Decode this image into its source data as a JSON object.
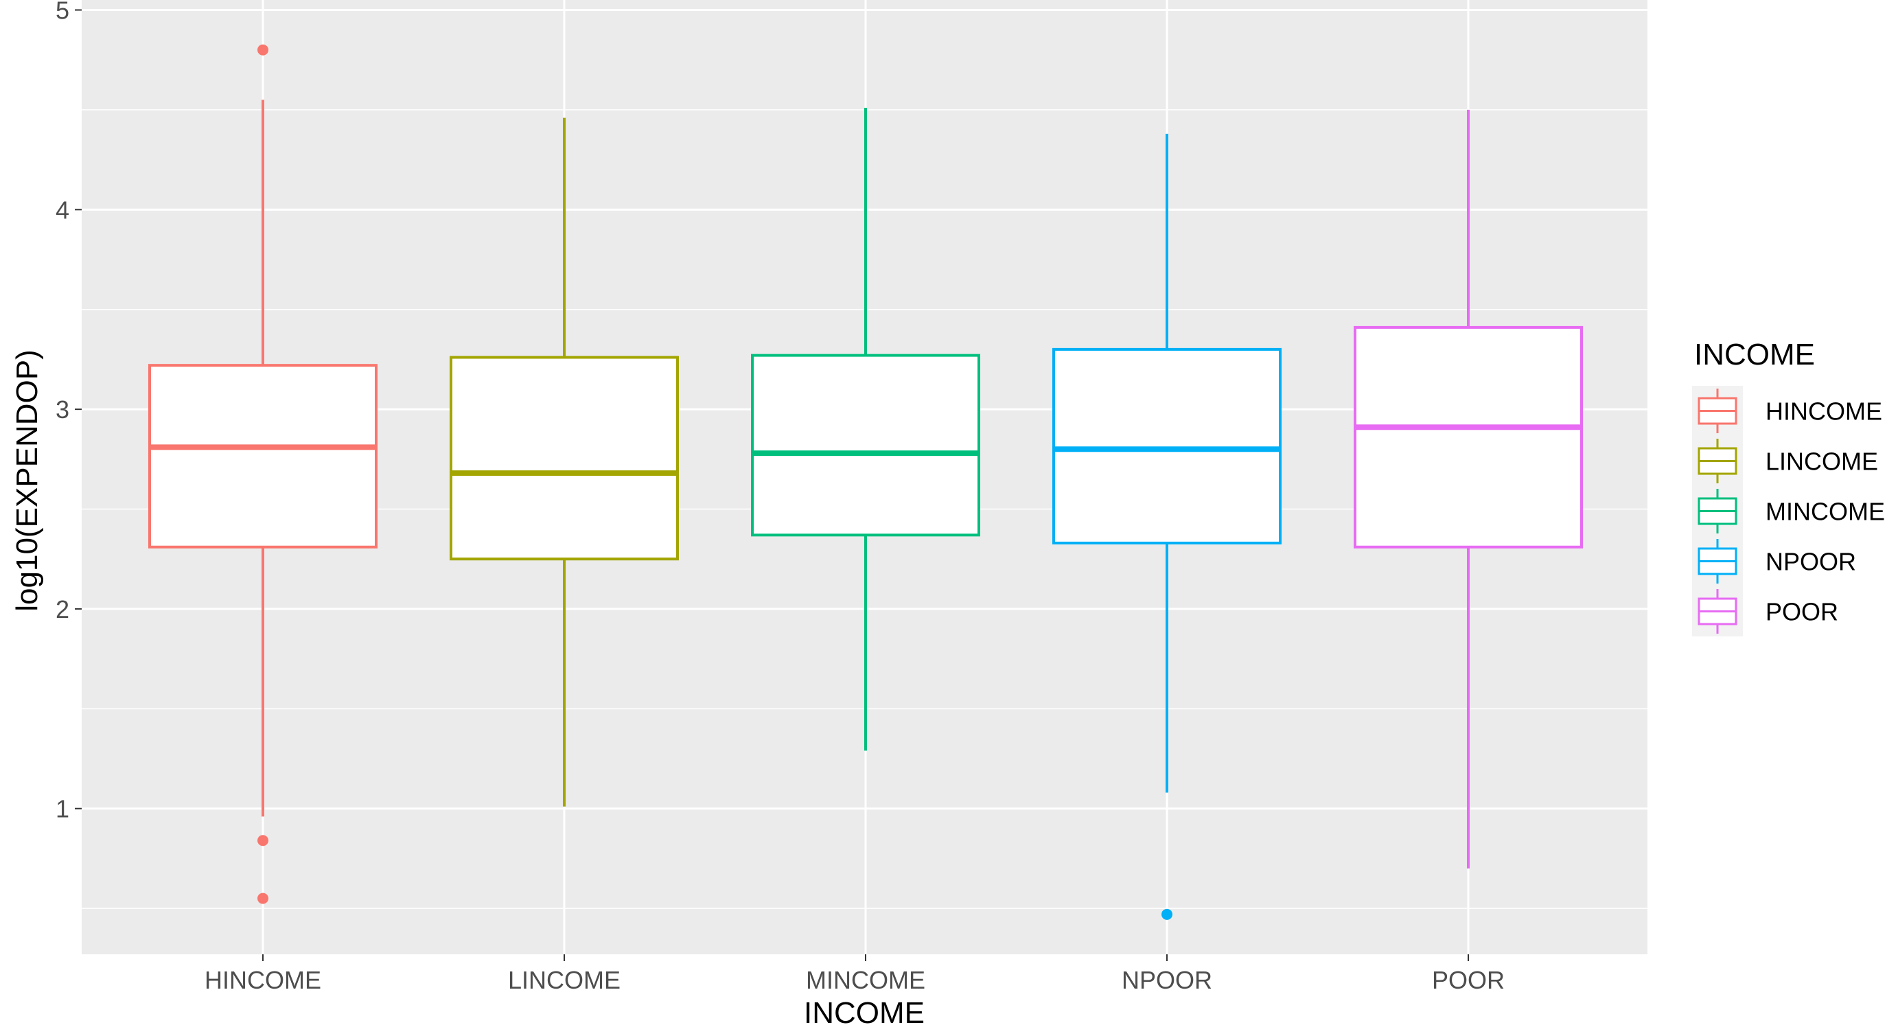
{
  "chart_data": {
    "type": "boxplot",
    "xlabel": "INCOME",
    "ylabel": "log10(EXPENDOP)",
    "ylim": [
      0.27,
      5.05
    ],
    "y_ticks": [
      "1",
      "2",
      "3",
      "4",
      "5"
    ],
    "grid": true,
    "legend": {
      "title": "INCOME",
      "placement": "right"
    },
    "categories": [
      "HINCOME",
      "LINCOME",
      "MINCOME",
      "NPOOR",
      "POOR"
    ],
    "series": [
      {
        "name": "HINCOME",
        "color": "#F8766D",
        "lower_whisker": 0.96,
        "q1": 2.31,
        "median": 2.81,
        "q3": 3.22,
        "upper_whisker": 4.55,
        "outliers": [
          4.8,
          0.84,
          0.55
        ]
      },
      {
        "name": "LINCOME",
        "color": "#A3A500",
        "lower_whisker": 1.01,
        "q1": 2.25,
        "median": 2.68,
        "q3": 3.26,
        "upper_whisker": 4.46,
        "outliers": []
      },
      {
        "name": "MINCOME",
        "color": "#00BF7D",
        "lower_whisker": 1.29,
        "q1": 2.37,
        "median": 2.78,
        "q3": 3.27,
        "upper_whisker": 4.51,
        "outliers": []
      },
      {
        "name": "NPOOR",
        "color": "#00B0F6",
        "lower_whisker": 1.08,
        "q1": 2.33,
        "median": 2.8,
        "q3": 3.3,
        "upper_whisker": 4.38,
        "outliers": [
          0.47
        ]
      },
      {
        "name": "POOR",
        "color": "#E76BF3",
        "lower_whisker": 0.7,
        "q1": 2.31,
        "median": 2.91,
        "q3": 3.41,
        "upper_whisker": 4.5,
        "outliers": []
      }
    ]
  }
}
